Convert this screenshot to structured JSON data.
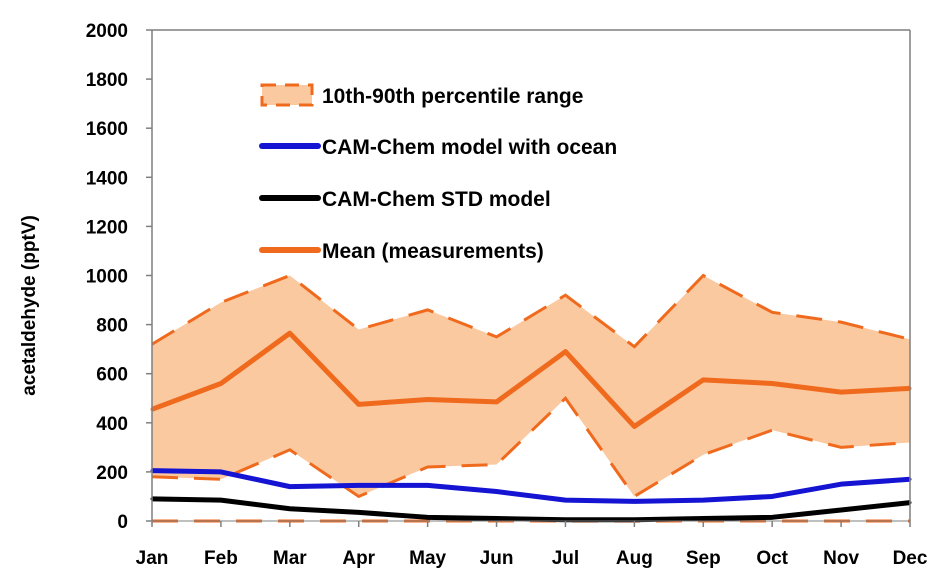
{
  "chart_data": {
    "type": "line",
    "categories": [
      "Jan",
      "Feb",
      "Mar",
      "Apr",
      "May",
      "Jun",
      "Jul",
      "Aug",
      "Sep",
      "Oct",
      "Nov",
      "Dec"
    ],
    "ylabel": "acetaldehyde (pptV)",
    "ylim": [
      0,
      2000
    ],
    "yticks": [
      "0",
      "200",
      "400",
      "600",
      "800",
      "1000",
      "1200",
      "1400",
      "1600",
      "1800",
      "2000"
    ],
    "grid": false,
    "legend_position": "top-left",
    "band": {
      "name": "10th-90th percentile range",
      "color": "#f06a1e",
      "fill": "#fbc9a0",
      "upper": [
        720,
        890,
        1000,
        780,
        860,
        750,
        920,
        710,
        1000,
        850,
        810,
        740
      ],
      "lower": [
        180,
        170,
        290,
        100,
        220,
        230,
        500,
        100,
        270,
        370,
        300,
        320
      ]
    },
    "series": [
      {
        "name": "CAM-Chem model with ocean",
        "color": "#1414d2",
        "values": [
          205,
          200,
          140,
          145,
          145,
          120,
          85,
          80,
          85,
          100,
          150,
          170
        ]
      },
      {
        "name": "CAM-Chem STD model",
        "color": "#000000",
        "values": [
          90,
          85,
          50,
          35,
          15,
          10,
          5,
          5,
          10,
          15,
          45,
          75
        ]
      },
      {
        "name": "Mean (measurements)",
        "color": "#f06a1e",
        "values": [
          455,
          560,
          765,
          475,
          495,
          485,
          690,
          385,
          575,
          560,
          525,
          540
        ]
      }
    ]
  }
}
